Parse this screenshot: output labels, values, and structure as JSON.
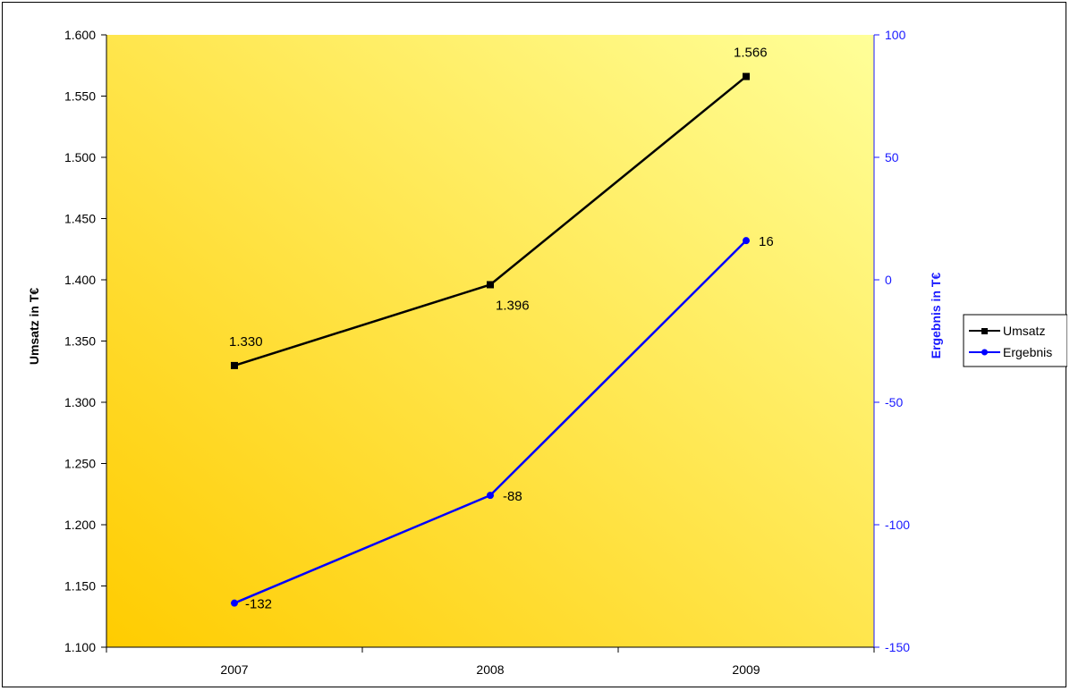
{
  "chart_data": {
    "type": "line",
    "categories": [
      "2007",
      "2008",
      "2009"
    ],
    "series": [
      {
        "name": "Umsatz",
        "axis": "left",
        "values": [
          1330,
          1396,
          1566
        ],
        "labels": [
          "1.330",
          "1.396",
          "1.566"
        ],
        "color": "#000000",
        "marker": "square"
      },
      {
        "name": "Ergebnis",
        "axis": "right",
        "values": [
          -132,
          -88,
          16
        ],
        "labels": [
          "-132",
          "-88",
          "16"
        ],
        "color": "#0000ff",
        "marker": "circle"
      }
    ],
    "ylabel": "Umsatz in T€",
    "ylim": [
      1100,
      1600
    ],
    "yticks": [
      1100,
      1150,
      1200,
      1250,
      1300,
      1350,
      1400,
      1450,
      1500,
      1550,
      1600
    ],
    "ytick_labels": [
      "1.100",
      "1.150",
      "1.200",
      "1.250",
      "1.300",
      "1.350",
      "1.400",
      "1.450",
      "1.500",
      "1.550",
      "1.600"
    ],
    "y2label": "Ergebnis in T€",
    "y2lim": [
      -150,
      100
    ],
    "y2ticks": [
      -150,
      -100,
      -50,
      0,
      50,
      100
    ],
    "y2tick_labels": [
      "-150",
      "-100",
      "-50",
      "0",
      "50",
      "100"
    ],
    "grid": false,
    "legend": "right",
    "colors": {
      "plot_gradient_light": "#ffff99",
      "plot_gradient_dark": "#ffcc00",
      "right_axis": "#1a1aff"
    }
  }
}
